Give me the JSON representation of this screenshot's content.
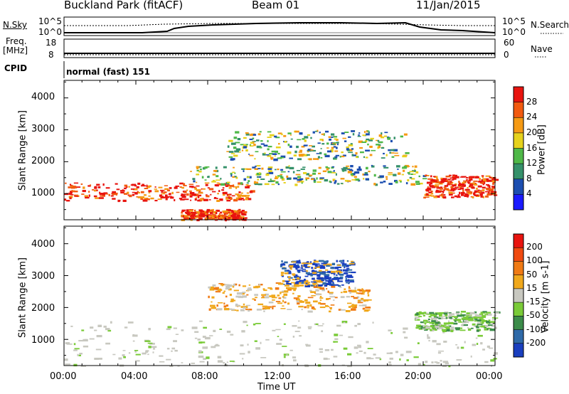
{
  "header": {
    "site_title": "Buckland Park (fitACF)",
    "beam": "Beam 01",
    "date": "11/Jan/2015"
  },
  "params_panel": {
    "nsky_label": "N.Sky",
    "nsearch_label": "N.Search",
    "noise_ticks": [
      "10^5",
      "10^0"
    ],
    "freq_label_1": "Freq.",
    "freq_label_2": "[MHz]",
    "freq_ticks": [
      "18",
      "8"
    ],
    "nave_label": "Nave",
    "nave_ticks": [
      "60",
      "0"
    ],
    "cpid_label": "CPID",
    "cpid_value": "normal (fast) 151"
  },
  "chart_data": [
    {
      "type": "heatmap",
      "panel": "power",
      "ylabel": "Slant Range [km]",
      "yticks": [
        "1000",
        "2000",
        "3000",
        "4000"
      ],
      "ylim": [
        180,
        4550
      ],
      "xlim_hours": [
        0,
        24
      ],
      "colorbar_label": "Power [dB]",
      "colorbar_ticks": [
        "28",
        "24",
        "20",
        "16",
        "12",
        "8",
        "4"
      ],
      "colors": [
        "#1a1aff",
        "#1c4eb0",
        "#35916a",
        "#4fb848",
        "#e6d21c",
        "#f59a14",
        "#f25a10",
        "#e8140f"
      ],
      "features": [
        {
          "hours": [
            0,
            10.5
          ],
          "range_km": [
            800,
            1350
          ],
          "level": "high"
        },
        {
          "hours": [
            6.5,
            10
          ],
          "range_km": [
            200,
            520
          ],
          "level": "high"
        },
        {
          "hours": [
            7,
            20
          ],
          "range_km": [
            1300,
            1900
          ],
          "level": "medium"
        },
        {
          "hours": [
            9,
            19
          ],
          "range_km": [
            2100,
            3000
          ],
          "level": "medium"
        },
        {
          "hours": [
            20,
            24
          ],
          "range_km": [
            900,
            1600
          ],
          "level": "high"
        }
      ]
    },
    {
      "type": "heatmap",
      "panel": "velocity",
      "ylabel": "Slant Range [km]",
      "yticks": [
        "1000",
        "2000",
        "3000",
        "4000"
      ],
      "ylim": [
        180,
        4550
      ],
      "xlim_hours": [
        0,
        24
      ],
      "xticks": [
        "00:00",
        "04:00",
        "08:00",
        "12:00",
        "16:00",
        "20:00",
        "00:00"
      ],
      "xlabel": "Time UT",
      "colorbar_label": "Velocity [m s-1]",
      "colorbar_ticks": [
        "200",
        "100",
        "50",
        "15",
        "-15",
        "-50",
        "-100",
        "-200"
      ],
      "colors": [
        "#1a3fbf",
        "#2f6aa8",
        "#3c8c4a",
        "#7acb38",
        "#c8c8c0",
        "#f0a81c",
        "#f07a14",
        "#f04a10",
        "#e8140f"
      ],
      "features": [
        {
          "hours": [
            0,
            24
          ],
          "range_km": [
            180,
            1600
          ],
          "velocity": "near-zero ground scatter"
        },
        {
          "hours": [
            8,
            17
          ],
          "range_km": [
            1900,
            2800
          ],
          "velocity": "away (orange)"
        },
        {
          "hours": [
            12,
            16
          ],
          "range_km": [
            2700,
            3500
          ],
          "velocity": "towards (blue)"
        },
        {
          "hours": [
            19.5,
            24
          ],
          "range_km": [
            1300,
            1900
          ],
          "velocity": "towards (green)"
        }
      ]
    }
  ]
}
